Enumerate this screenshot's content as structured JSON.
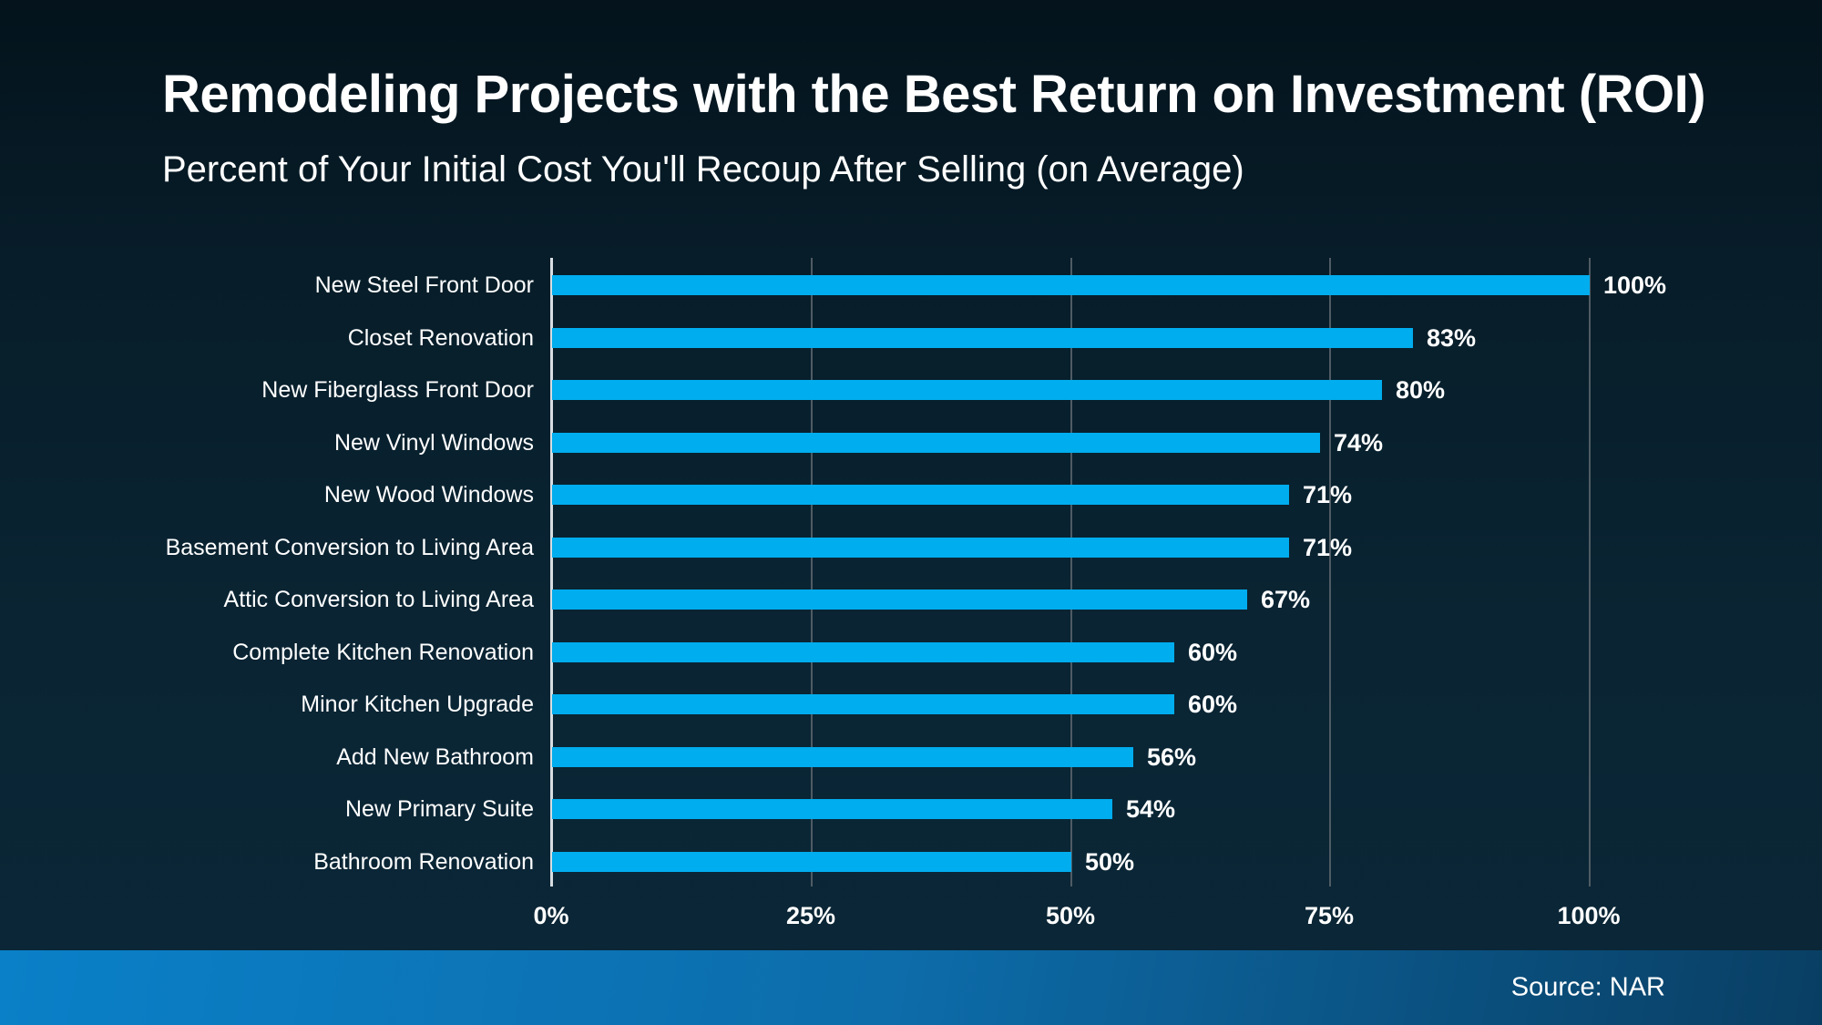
{
  "header": {
    "title": "Remodeling Projects with the Best Return on Investment (ROI)",
    "subtitle": "Percent of Your Initial Cost You'll Recoup After Selling (on Average)"
  },
  "chart_data": {
    "type": "bar",
    "orientation": "horizontal",
    "title": "Remodeling Projects with the Best Return on Investment (ROI)",
    "subtitle": "Percent of Your Initial Cost You'll Recoup After Selling (on Average)",
    "xlabel": "",
    "ylabel": "",
    "xlim": [
      0,
      100
    ],
    "grid": "vertical",
    "legend": "none",
    "categories": [
      "New Steel Front Door",
      "Closet Renovation",
      "New Fiberglass Front Door",
      "New Vinyl Windows",
      "New Wood Windows",
      "Basement Conversion to Living Area",
      "Attic Conversion to Living Area",
      "Complete Kitchen Renovation",
      "Minor Kitchen Upgrade",
      "Add New Bathroom",
      "New Primary Suite",
      "Bathroom Renovation"
    ],
    "values": [
      100,
      83,
      80,
      74,
      71,
      71,
      67,
      60,
      60,
      56,
      54,
      50
    ],
    "value_labels": [
      "100%",
      "83%",
      "80%",
      "74%",
      "71%",
      "71%",
      "67%",
      "60%",
      "60%",
      "56%",
      "54%",
      "50%"
    ],
    "x_ticks": [
      0,
      25,
      50,
      75,
      100
    ],
    "x_tick_labels": [
      "0%",
      "25%",
      "50%",
      "75%",
      "100%"
    ]
  },
  "footer": {
    "source": "Source: NAR"
  },
  "colors": {
    "bar": "#00adee",
    "background_top": "#04131c",
    "background_bottom": "#0b2737",
    "axis_line": "#d7dde1",
    "gridline": "#4f5b64",
    "text": "#ffffff",
    "footer_gradient_left": "#0a80c8",
    "footer_gradient_mid": "#0d6dab",
    "footer_gradient_right": "#093e63"
  }
}
